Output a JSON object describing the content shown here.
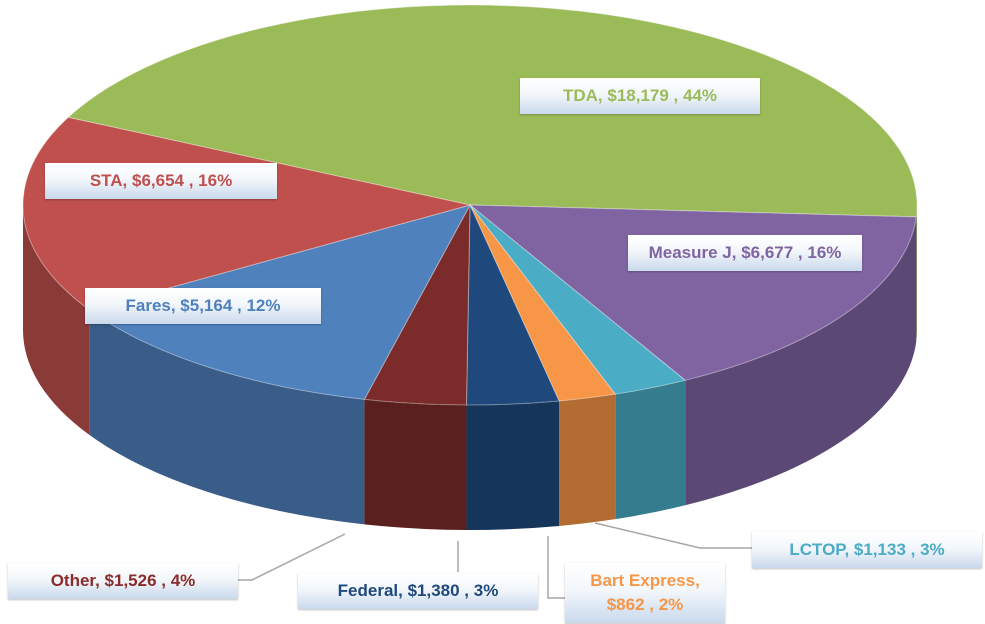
{
  "chart_data": {
    "type": "pie",
    "values": [
      18179,
      6677,
      1133,
      862,
      1380,
      1526,
      5164,
      6654
    ],
    "value_labels": [
      "TDA,  $18,179 , 44%",
      "Measure J,  $6,677 , 16%",
      "LCTOP,  $1,133 , 3%",
      "Bart Express, $862 , 2%",
      "Federal,  $1,380 , 3%",
      "Other,  $1,526 , 4%",
      "Fares,  $5,164 , 12%",
      "STA,  $6,654 , 16%"
    ],
    "colors": [
      "#9bbb59",
      "#8064a2",
      "#4bacc6",
      "#f79646",
      "#1f497d",
      "#7b2c2a",
      "#4f81bd",
      "#c0504d"
    ]
  }
}
